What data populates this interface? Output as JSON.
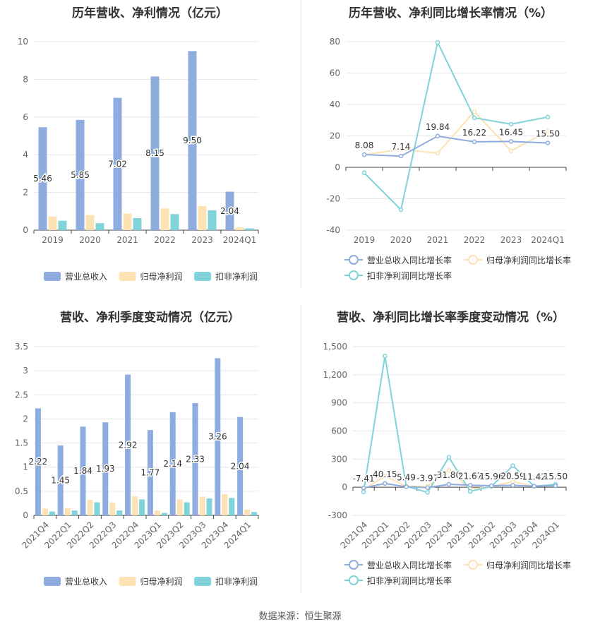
{
  "source_text": "数据来源：恒生聚源",
  "chart_data": [
    {
      "type": "bar",
      "title": "历年营收、净利情况（亿元）",
      "categories": [
        "2019",
        "2020",
        "2021",
        "2022",
        "2023",
        "2024Q1"
      ],
      "ylim": [
        0,
        10
      ],
      "yticks": [
        0,
        2,
        4,
        6,
        8,
        10
      ],
      "grid": true,
      "legend_position": "bottom",
      "series": [
        {
          "name": "营业总收入",
          "values": [
            5.46,
            5.85,
            7.02,
            8.15,
            9.5,
            2.04
          ],
          "labels": [
            "5.46",
            "5.85",
            "7.02",
            "8.15",
            "9.50",
            "2.04"
          ]
        },
        {
          "name": "归母净利润",
          "values": [
            0.72,
            0.8,
            0.88,
            1.15,
            1.28,
            0.14
          ]
        },
        {
          "name": "扣非净利润",
          "values": [
            0.5,
            0.37,
            0.64,
            0.85,
            1.05,
            0.09
          ]
        }
      ],
      "colors": [
        "#8eadde",
        "#fde2b3",
        "#7fd3d9"
      ]
    },
    {
      "type": "line",
      "title": "历年营收、净利同比增长率情况（%）",
      "categories": [
        "2019",
        "2020",
        "2021",
        "2022",
        "2023",
        "2024Q1"
      ],
      "ylim": [
        -40,
        80
      ],
      "yticks": [
        -40,
        -20,
        0,
        20,
        40,
        60,
        80
      ],
      "grid": true,
      "legend_position": "bottom",
      "series": [
        {
          "name": "营业总收入同比增长率",
          "values": [
            8.08,
            7.14,
            19.84,
            16.22,
            16.45,
            15.5
          ],
          "labels": [
            "8.08",
            "7.14",
            "19.84",
            "16.22",
            "16.45",
            "15.50"
          ]
        },
        {
          "name": "归母净利润同比增长率",
          "values": [
            8.0,
            11.5,
            9.0,
            35.5,
            10.5,
            23.0
          ]
        },
        {
          "name": "扣非净利润同比增长率",
          "values": [
            -3.5,
            -27.0,
            79.5,
            31.5,
            27.5,
            32.0
          ]
        }
      ],
      "colors": [
        "#8eadde",
        "#fde2b3",
        "#7fd3d9"
      ]
    },
    {
      "type": "bar",
      "title": "营收、净利季度变动情况（亿元）",
      "categories": [
        "2021Q4",
        "2022Q1",
        "2022Q2",
        "2022Q3",
        "2022Q4",
        "2023Q1",
        "2023Q2",
        "2023Q3",
        "2023Q4",
        "2024Q1"
      ],
      "ylim": [
        0,
        3.5
      ],
      "yticks": [
        0,
        0.5,
        1,
        1.5,
        2,
        2.5,
        3,
        3.5
      ],
      "grid": true,
      "legend_position": "bottom",
      "series": [
        {
          "name": "营业总收入",
          "values": [
            2.22,
            1.45,
            1.84,
            1.93,
            2.92,
            1.77,
            2.14,
            2.33,
            3.26,
            2.04
          ],
          "labels": [
            "2.22",
            "1.45",
            "1.84",
            "1.93",
            "2.92",
            "1.77",
            "2.14",
            "2.33",
            "3.26",
            "2.04"
          ]
        },
        {
          "name": "归母净利润",
          "values": [
            0.14,
            0.15,
            0.32,
            0.27,
            0.4,
            0.1,
            0.33,
            0.39,
            0.44,
            0.12
          ]
        },
        {
          "name": "扣非净利润",
          "values": [
            0.08,
            0.1,
            0.27,
            0.1,
            0.33,
            0.05,
            0.27,
            0.35,
            0.36,
            0.07
          ]
        }
      ],
      "colors": [
        "#8eadde",
        "#fde2b3",
        "#7fd3d9"
      ]
    },
    {
      "type": "line",
      "title": "营收、净利同比增长率季度变动情况（%）",
      "categories": [
        "2021Q4",
        "2022Q1",
        "2022Q2",
        "2022Q3",
        "2022Q4",
        "2023Q1",
        "2023Q2",
        "2023Q3",
        "2023Q4",
        "2024Q1"
      ],
      "ylim": [
        -300,
        1500
      ],
      "yticks": [
        -300,
        0,
        300,
        600,
        900,
        1200,
        1500
      ],
      "ytick_labels": [
        "-300",
        "0",
        "300",
        "600",
        "900",
        "1,200",
        "1,500"
      ],
      "grid": true,
      "legend_position": "bottom",
      "series": [
        {
          "name": "营业总收入同比增长率",
          "values": [
            -7.41,
            40.15,
            5.49,
            -3.97,
            31.8,
            21.67,
            15.96,
            20.59,
            11.42,
            15.5
          ],
          "labels": [
            "-7.41",
            "40.15",
            "5.49",
            "-3.97",
            "31.80",
            "21.67",
            "15.96",
            "20.59",
            "11.42",
            "15.50"
          ]
        },
        {
          "name": "归母净利润同比增长率",
          "values": [
            -30,
            120,
            10,
            10,
            180,
            -20,
            5,
            60,
            10,
            25
          ]
        },
        {
          "name": "扣非净利润同比增长率",
          "values": [
            -50,
            1400,
            10,
            -55,
            320,
            -45,
            10,
            230,
            10,
            30
          ]
        }
      ],
      "colors": [
        "#8eadde",
        "#fde2b3",
        "#7fd3d9"
      ]
    }
  ]
}
